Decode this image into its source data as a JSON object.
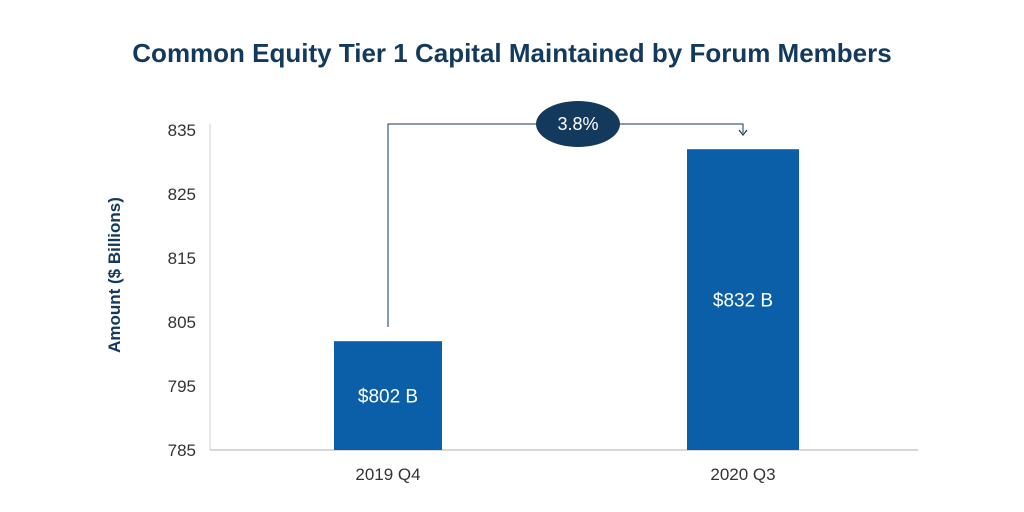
{
  "chart_data": {
    "type": "bar",
    "title": "Common Equity Tier 1 Capital Maintained by Forum Members",
    "ylabel": "Amount ($ Billions)",
    "xlabel": "",
    "categories": [
      "2019 Q4",
      "2020 Q3"
    ],
    "values": [
      802,
      832
    ],
    "data_labels": [
      "$802 B",
      "$832 B"
    ],
    "ylim": [
      785,
      835
    ],
    "yticks": [
      785,
      795,
      805,
      815,
      825,
      835
    ],
    "annotation": {
      "text": "3.8%",
      "from": "2019 Q4",
      "to": "2020 Q3"
    },
    "grid": false,
    "legend": "none",
    "colors": {
      "bar": "#0b5ea8",
      "badge": "#133a5c",
      "title": "#133a5c",
      "connector": "#133a5c",
      "axis": "#cccccc"
    }
  }
}
